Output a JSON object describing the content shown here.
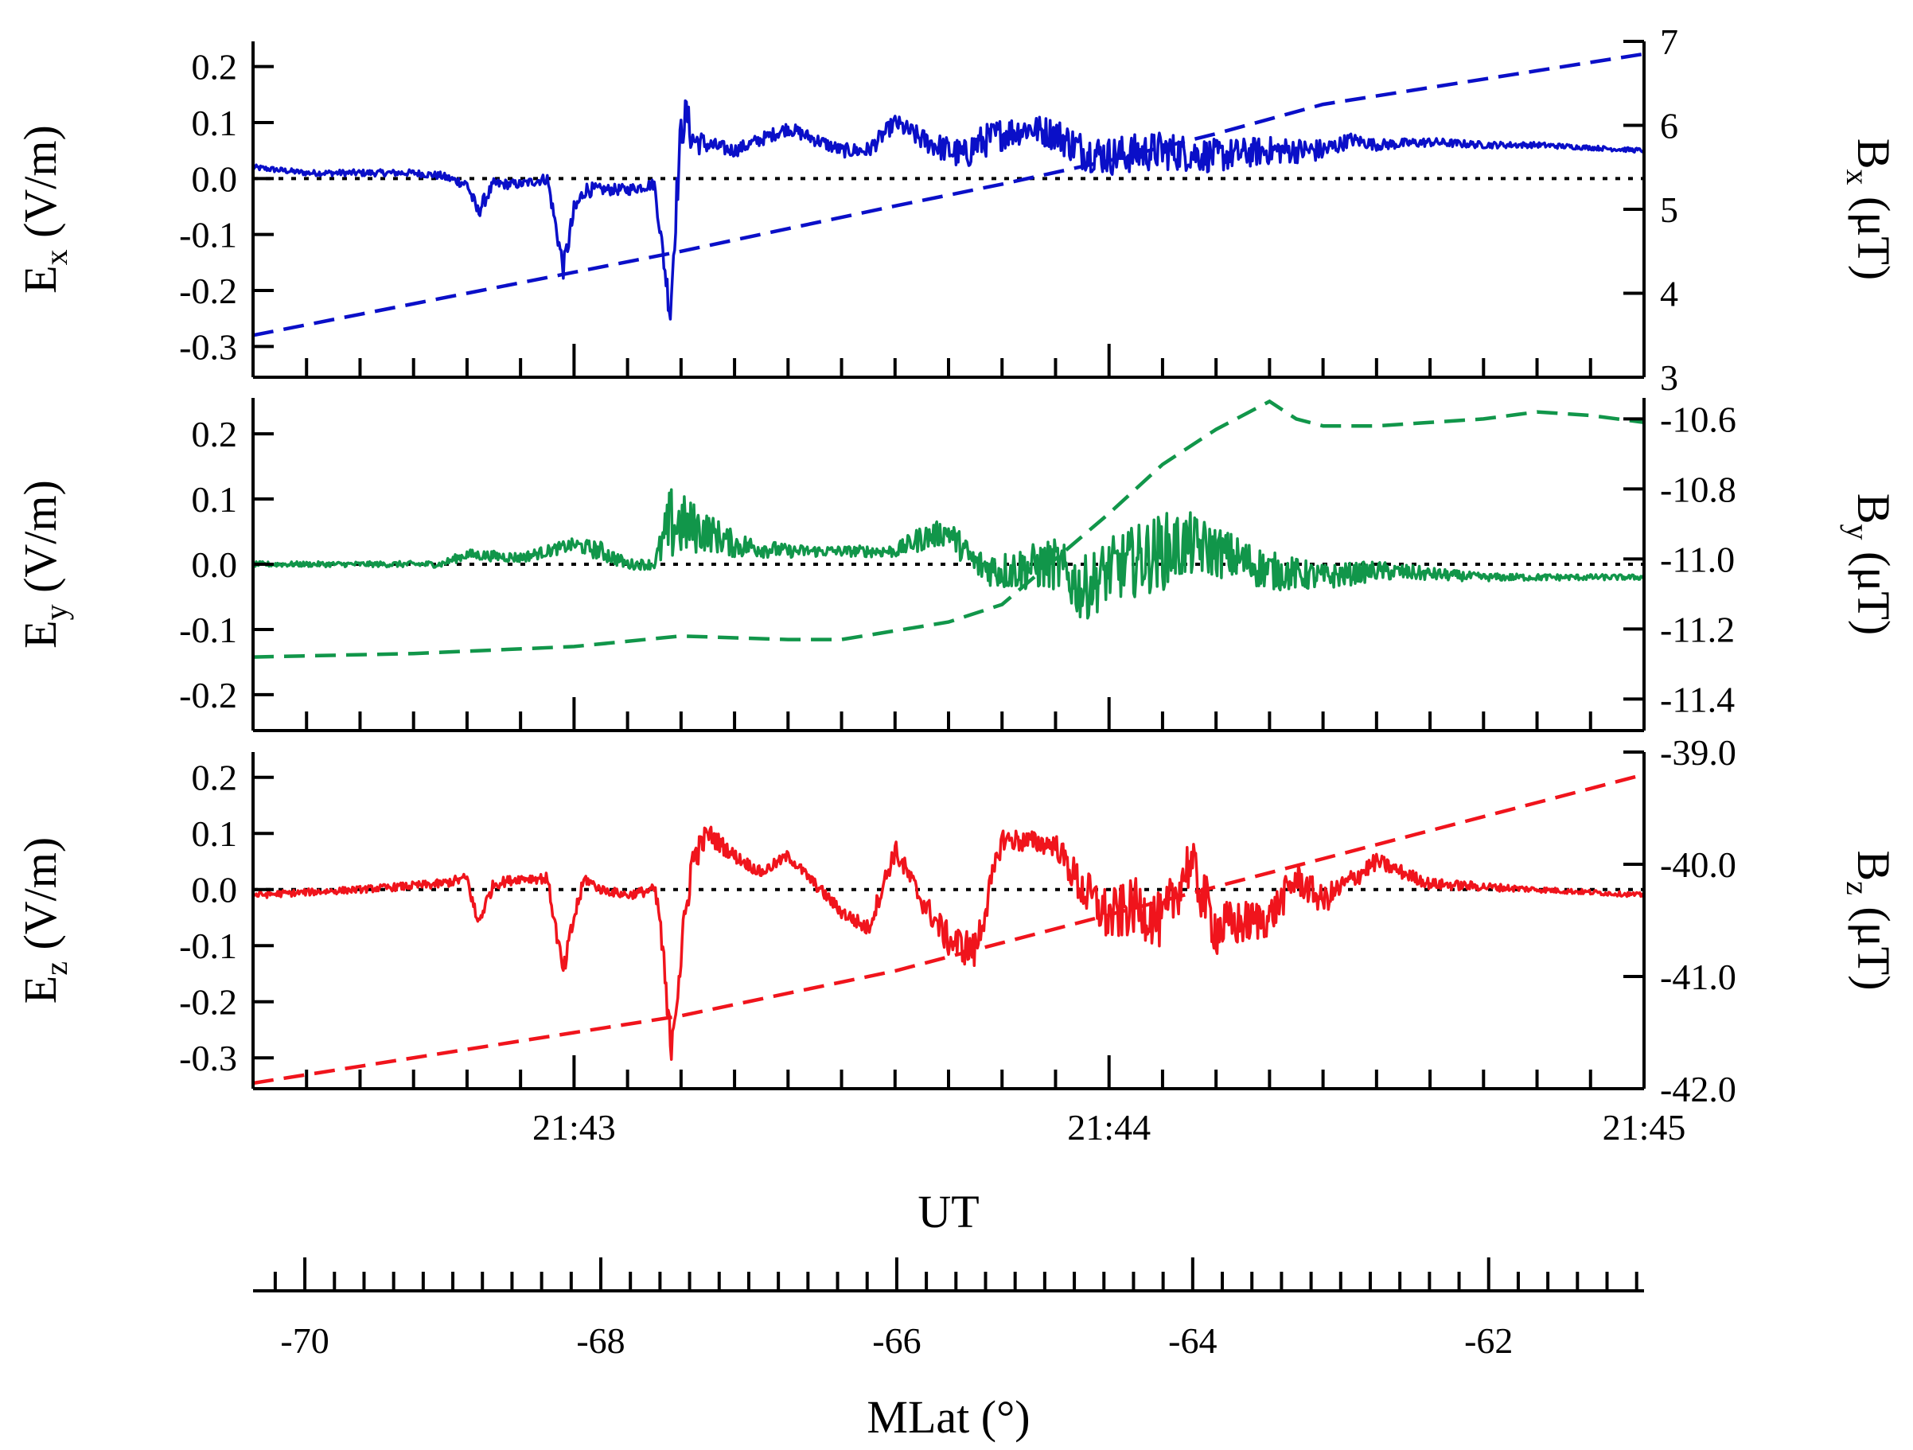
{
  "chart_data": {
    "type": "line",
    "colors": {
      "x": "#0a0fc8",
      "y": "#11964a",
      "z": "#f0141c",
      "axes": "#000000"
    },
    "time_axis": {
      "label": "UT",
      "range_min": [
        42.4,
        45.0
      ],
      "major_ticks_min": [
        43,
        44,
        45
      ],
      "tick_labels": [
        "21:43",
        "21:44",
        "21:45"
      ],
      "minor_tick_step_min": 0.1
    },
    "mlat_axis": {
      "label": "MLat (°)",
      "range": [
        -70.35,
        -60.95
      ],
      "major_ticks": [
        -70,
        -68,
        -66,
        -64,
        -62
      ],
      "tick_labels": [
        "-70",
        "-68",
        "-66",
        "-64",
        "-62"
      ],
      "minor_tick_step": 0.2
    },
    "panels": [
      {
        "name": "x",
        "left_label_main": "E",
        "left_label_sub": "x",
        "left_label_unit": " (V/m)",
        "right_label_main": "B",
        "right_label_sub": "x",
        "right_label_unit": " (μT)",
        "left_ylim": [
          -0.355,
          0.245
        ],
        "left_ticks": [
          -0.3,
          -0.2,
          -0.1,
          0.0,
          0.1,
          0.2
        ],
        "left_tick_labels": [
          "-0.3",
          "-0.2",
          "-0.1",
          "0.0",
          "0.1",
          "0.2"
        ],
        "right_ylim": [
          3,
          7
        ],
        "right_ticks": [
          3,
          4,
          5,
          6,
          7
        ],
        "right_tick_labels": [
          "3",
          "4",
          "5",
          "6",
          "7"
        ],
        "e_series": {
          "name": "Ex (V/m)",
          "x": [
            42.4,
            42.5,
            42.6,
            42.7,
            42.75,
            42.8,
            42.82,
            42.85,
            42.9,
            42.95,
            42.98,
            43.0,
            43.02,
            43.05,
            43.1,
            43.15,
            43.18,
            43.19,
            43.2,
            43.21,
            43.22,
            43.25,
            43.3,
            43.4,
            43.5,
            43.55,
            43.6,
            43.65,
            43.7,
            43.73,
            43.75,
            43.8,
            43.85,
            43.9,
            43.95,
            44.0,
            44.1,
            44.2,
            44.3,
            44.4,
            44.43,
            44.45,
            44.5,
            44.6,
            44.7,
            44.8,
            44.9,
            45.0
          ],
          "y": [
            0.02,
            0.01,
            0.01,
            0.01,
            0.005,
            -0.01,
            -0.06,
            -0.01,
            -0.01,
            0.0,
            -0.16,
            -0.06,
            -0.02,
            -0.02,
            -0.02,
            -0.01,
            -0.24,
            -0.06,
            0.08,
            0.12,
            0.07,
            0.06,
            0.05,
            0.09,
            0.05,
            0.05,
            0.1,
            0.07,
            0.05,
            0.04,
            0.06,
            0.08,
            0.09,
            0.08,
            0.05,
            0.04,
            0.05,
            0.04,
            0.05,
            0.05,
            0.06,
            0.07,
            0.06,
            0.065,
            0.06,
            0.06,
            0.055,
            0.05
          ],
          "noise_amplitude": [
            0.005,
            0.005,
            0.006,
            0.006,
            0.007,
            0.01,
            0.015,
            0.01,
            0.008,
            0.01,
            0.02,
            0.02,
            0.015,
            0.01,
            0.01,
            0.01,
            0.03,
            0.04,
            0.04,
            0.03,
            0.03,
            0.015,
            0.012,
            0.012,
            0.012,
            0.015,
            0.015,
            0.02,
            0.025,
            0.03,
            0.03,
            0.03,
            0.025,
            0.03,
            0.035,
            0.035,
            0.035,
            0.03,
            0.025,
            0.02,
            0.015,
            0.012,
            0.01,
            0.008,
            0.006,
            0.005,
            0.004,
            0.004
          ]
        },
        "b_series": {
          "name": "Bx (μT)",
          "x": [
            42.4,
            42.6,
            42.8,
            43.0,
            43.2,
            43.4,
            43.6,
            43.8,
            44.0,
            44.2,
            44.4,
            44.6,
            44.8,
            45.0
          ],
          "y": [
            3.5,
            3.75,
            4.0,
            4.25,
            4.5,
            4.77,
            5.04,
            5.3,
            5.58,
            5.9,
            6.25,
            6.45,
            6.65,
            6.85
          ]
        }
      },
      {
        "name": "y",
        "left_label_main": "E",
        "left_label_sub": "y",
        "left_label_unit": " (V/m)",
        "right_label_main": "B",
        "right_label_sub": "y",
        "right_label_unit": " (μT)",
        "left_ylim": [
          -0.255,
          0.255
        ],
        "left_ticks": [
          -0.2,
          -0.1,
          0.0,
          0.1,
          0.2
        ],
        "left_tick_labels": [
          "-0.2",
          "-0.1",
          "0.0",
          "0.1",
          "0.2"
        ],
        "right_ylim": [
          -11.49,
          -10.54
        ],
        "right_ticks": [
          -11.4,
          -11.2,
          -11.0,
          -10.8,
          -10.6
        ],
        "right_tick_labels": [
          "-11.4",
          "-11.2",
          "-11.0",
          "-10.8",
          "-10.6"
        ],
        "e_series": {
          "name": "Ey (V/m)",
          "x": [
            42.4,
            42.6,
            42.75,
            42.8,
            42.9,
            43.0,
            43.05,
            43.1,
            43.15,
            43.18,
            43.2,
            43.25,
            43.3,
            43.4,
            43.5,
            43.6,
            43.65,
            43.7,
            43.75,
            43.8,
            43.9,
            43.95,
            44.0,
            44.1,
            44.15,
            44.2,
            44.3,
            44.4,
            44.5,
            44.6,
            44.7,
            44.8,
            45.0
          ],
          "y": [
            0.0,
            0.0,
            0.0,
            0.015,
            0.01,
            0.03,
            0.02,
            0.0,
            0.0,
            0.06,
            0.06,
            0.05,
            0.03,
            0.02,
            0.02,
            0.02,
            0.04,
            0.05,
            0.0,
            -0.01,
            0.0,
            -0.04,
            -0.01,
            0.02,
            0.03,
            0.02,
            -0.01,
            -0.02,
            -0.01,
            -0.015,
            -0.02,
            -0.02,
            -0.02
          ],
          "noise_amplitude": [
            0.004,
            0.004,
            0.005,
            0.008,
            0.008,
            0.01,
            0.015,
            0.008,
            0.008,
            0.06,
            0.05,
            0.03,
            0.02,
            0.01,
            0.008,
            0.01,
            0.02,
            0.02,
            0.025,
            0.03,
            0.04,
            0.05,
            0.05,
            0.06,
            0.05,
            0.04,
            0.03,
            0.02,
            0.015,
            0.01,
            0.006,
            0.005,
            0.004
          ]
        },
        "b_series": {
          "name": "By (μT)",
          "x": [
            42.4,
            42.7,
            43.0,
            43.2,
            43.4,
            43.5,
            43.7,
            43.8,
            43.9,
            44.0,
            44.1,
            44.2,
            44.3,
            44.35,
            44.4,
            44.5,
            44.6,
            44.7,
            44.8,
            44.9,
            45.0
          ],
          "y": [
            -11.28,
            -11.27,
            -11.25,
            -11.22,
            -11.23,
            -11.23,
            -11.18,
            -11.13,
            -11.0,
            -10.87,
            -10.73,
            -10.63,
            -10.55,
            -10.6,
            -10.62,
            -10.62,
            -10.61,
            -10.6,
            -10.58,
            -10.59,
            -10.61
          ]
        }
      },
      {
        "name": "z",
        "left_label_main": "E",
        "left_label_sub": "z",
        "left_label_unit": " (V/m)",
        "right_label_main": "B",
        "right_label_sub": "z",
        "right_label_unit": " (μT)",
        "left_ylim": [
          -0.355,
          0.245
        ],
        "left_ticks": [
          -0.3,
          -0.2,
          -0.1,
          0.0,
          0.1,
          0.2
        ],
        "left_tick_labels": [
          "-0.3",
          "-0.2",
          "-0.1",
          "0.0",
          "0.1",
          "0.2"
        ],
        "right_ylim": [
          -42.0,
          -39.0
        ],
        "right_ticks": [
          -42.0,
          -41.0,
          -40.0,
          -39.0
        ],
        "right_tick_labels": [
          "-42.0",
          "-41.0",
          "-40.0",
          "-39.0"
        ],
        "e_series": {
          "name": "Ez (V/m)",
          "x": [
            42.4,
            42.6,
            42.75,
            42.8,
            42.82,
            42.85,
            42.9,
            42.95,
            42.98,
            43.0,
            43.02,
            43.05,
            43.1,
            43.15,
            43.16,
            43.18,
            43.2,
            43.22,
            43.25,
            43.3,
            43.35,
            43.4,
            43.45,
            43.5,
            43.55,
            43.6,
            43.65,
            43.7,
            43.75,
            43.8,
            43.9,
            43.95,
            44.0,
            44.05,
            44.1,
            44.15,
            44.2,
            44.25,
            44.3,
            44.35,
            44.4,
            44.5,
            44.6,
            44.8,
            45.0
          ],
          "y": [
            -0.01,
            0.0,
            0.01,
            0.02,
            -0.06,
            0.01,
            0.02,
            0.02,
            -0.15,
            -0.05,
            0.02,
            0.0,
            -0.01,
            0.0,
            -0.05,
            -0.28,
            -0.12,
            0.05,
            0.1,
            0.06,
            0.03,
            0.06,
            0.01,
            -0.04,
            -0.07,
            0.07,
            -0.02,
            -0.09,
            -0.11,
            0.09,
            0.08,
            0.0,
            -0.05,
            -0.03,
            -0.06,
            0.05,
            -0.07,
            -0.06,
            -0.05,
            0.02,
            -0.02,
            0.05,
            0.01,
            0.0,
            -0.01
          ],
          "noise_amplitude": [
            0.006,
            0.006,
            0.008,
            0.01,
            0.015,
            0.01,
            0.008,
            0.01,
            0.02,
            0.02,
            0.01,
            0.008,
            0.008,
            0.01,
            0.03,
            0.04,
            0.04,
            0.03,
            0.02,
            0.012,
            0.01,
            0.01,
            0.01,
            0.012,
            0.015,
            0.02,
            0.02,
            0.03,
            0.035,
            0.02,
            0.02,
            0.04,
            0.05,
            0.05,
            0.05,
            0.05,
            0.05,
            0.04,
            0.035,
            0.03,
            0.025,
            0.015,
            0.01,
            0.005,
            0.004
          ]
        },
        "b_series": {
          "name": "Bz (μT)",
          "x": [
            42.4,
            42.6,
            42.8,
            43.0,
            43.2,
            43.4,
            43.6,
            43.8,
            44.0,
            44.2,
            44.4,
            44.6,
            44.8,
            45.0
          ],
          "y": [
            -41.95,
            -41.8,
            -41.65,
            -41.5,
            -41.35,
            -41.15,
            -40.95,
            -40.7,
            -40.45,
            -40.2,
            -39.95,
            -39.7,
            -39.45,
            -39.2
          ]
        }
      }
    ]
  }
}
